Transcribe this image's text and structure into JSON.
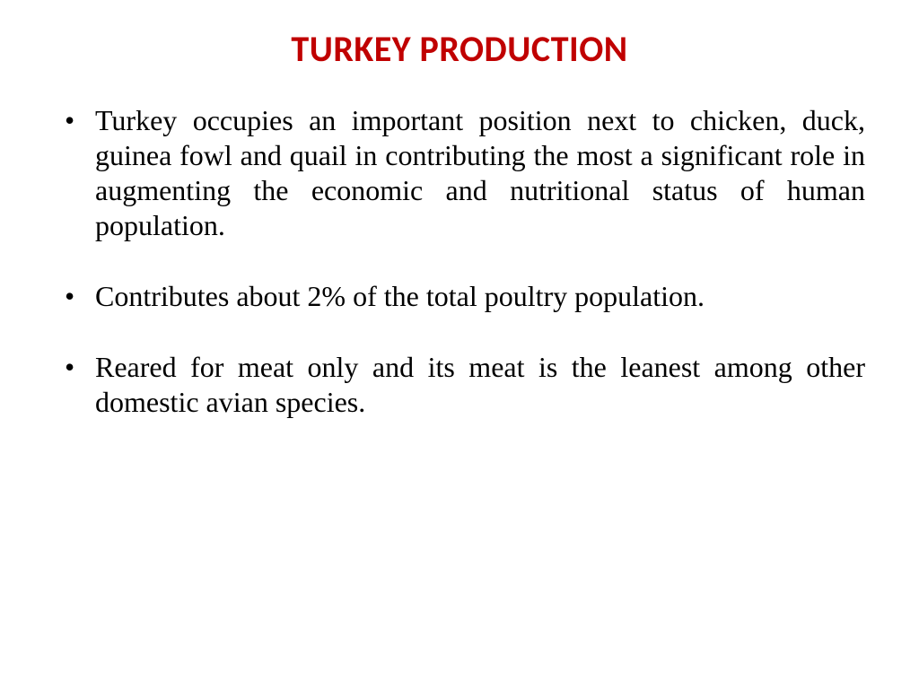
{
  "title": {
    "text": "TURKEY PRODUCTION",
    "color": "#c00000",
    "fontsize": 40
  },
  "bullets": {
    "fontsize": 32,
    "line_height": 1.22,
    "color": "#000000",
    "items": [
      "Turkey occupies an important position next to chicken, duck, guinea fowl and quail in contributing the most a significant role in augmenting the economic and nutritional status of human population.",
      "Contributes about 2% of the total poultry population.",
      "Reared for meat only and its meat is the leanest among other domestic avian species."
    ]
  }
}
